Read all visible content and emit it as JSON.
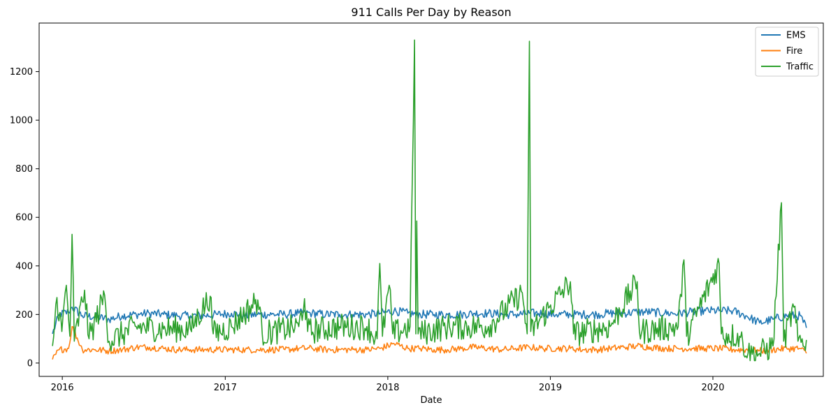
{
  "chart_data": {
    "type": "line",
    "title": "911 Calls Per Day by Reason",
    "xlabel": "Date",
    "ylabel": "",
    "xlim": [
      "2015-11-10",
      "2020-09-05"
    ],
    "ylim": [
      -55,
      1400
    ],
    "x_ticks": [
      "2016",
      "2017",
      "2018",
      "2019",
      "2020"
    ],
    "x_tick_dates": [
      "2016-01-01",
      "2017-01-01",
      "2018-01-01",
      "2019-01-01",
      "2020-01-01"
    ],
    "y_ticks": [
      0,
      200,
      400,
      600,
      800,
      1000,
      1200
    ],
    "grid": false,
    "legend_position": "top-right",
    "series": [
      {
        "name": "EMS",
        "color": "#1f77b4",
        "points": [
          [
            "2015-12-10",
            120
          ],
          [
            "2015-12-25",
            200
          ],
          [
            "2016-01-15",
            210
          ],
          [
            "2016-01-23",
            230
          ],
          [
            "2016-02-15",
            195
          ],
          [
            "2016-03-15",
            190
          ],
          [
            "2016-04-15",
            180
          ],
          [
            "2016-05-15",
            195
          ],
          [
            "2016-06-15",
            200
          ],
          [
            "2016-07-15",
            205
          ],
          [
            "2016-08-15",
            200
          ],
          [
            "2016-09-15",
            195
          ],
          [
            "2016-10-15",
            195
          ],
          [
            "2016-11-15",
            195
          ],
          [
            "2016-12-15",
            200
          ],
          [
            "2017-01-15",
            205
          ],
          [
            "2017-02-15",
            195
          ],
          [
            "2017-03-15",
            200
          ],
          [
            "2017-04-15",
            200
          ],
          [
            "2017-05-15",
            200
          ],
          [
            "2017-06-15",
            205
          ],
          [
            "2017-07-15",
            205
          ],
          [
            "2017-08-15",
            200
          ],
          [
            "2017-09-15",
            200
          ],
          [
            "2017-10-15",
            200
          ],
          [
            "2017-11-15",
            200
          ],
          [
            "2017-12-15",
            205
          ],
          [
            "2018-01-15",
            215
          ],
          [
            "2018-02-15",
            205
          ],
          [
            "2018-03-15",
            200
          ],
          [
            "2018-04-15",
            200
          ],
          [
            "2018-05-15",
            200
          ],
          [
            "2018-06-15",
            200
          ],
          [
            "2018-07-15",
            205
          ],
          [
            "2018-08-15",
            205
          ],
          [
            "2018-09-15",
            200
          ],
          [
            "2018-10-15",
            200
          ],
          [
            "2018-11-15",
            205
          ],
          [
            "2018-12-15",
            205
          ],
          [
            "2019-01-15",
            200
          ],
          [
            "2019-02-15",
            200
          ],
          [
            "2019-03-15",
            200
          ],
          [
            "2019-04-15",
            200
          ],
          [
            "2019-05-15",
            205
          ],
          [
            "2019-06-15",
            205
          ],
          [
            "2019-07-15",
            210
          ],
          [
            "2019-08-15",
            210
          ],
          [
            "2019-09-15",
            205
          ],
          [
            "2019-10-15",
            205
          ],
          [
            "2019-11-15",
            210
          ],
          [
            "2019-12-15",
            215
          ],
          [
            "2020-01-15",
            215
          ],
          [
            "2020-02-15",
            215
          ],
          [
            "2020-03-15",
            195
          ],
          [
            "2020-04-15",
            165
          ],
          [
            "2020-05-15",
            180
          ],
          [
            "2020-06-15",
            195
          ],
          [
            "2020-07-15",
            195
          ],
          [
            "2020-07-29",
            145
          ]
        ]
      },
      {
        "name": "Fire",
        "color": "#ff7f0e",
        "points": [
          [
            "2015-12-10",
            15
          ],
          [
            "2015-12-25",
            55
          ],
          [
            "2016-01-15",
            60
          ],
          [
            "2016-01-23",
            150
          ],
          [
            "2016-02-15",
            55
          ],
          [
            "2016-03-15",
            55
          ],
          [
            "2016-04-15",
            50
          ],
          [
            "2016-05-15",
            55
          ],
          [
            "2016-06-15",
            65
          ],
          [
            "2016-07-15",
            65
          ],
          [
            "2016-08-15",
            60
          ],
          [
            "2016-09-15",
            55
          ],
          [
            "2016-10-15",
            55
          ],
          [
            "2016-11-15",
            55
          ],
          [
            "2016-12-15",
            55
          ],
          [
            "2017-01-15",
            55
          ],
          [
            "2017-02-15",
            55
          ],
          [
            "2017-03-15",
            55
          ],
          [
            "2017-04-15",
            55
          ],
          [
            "2017-05-15",
            55
          ],
          [
            "2017-06-15",
            60
          ],
          [
            "2017-07-15",
            60
          ],
          [
            "2017-08-15",
            55
          ],
          [
            "2017-09-15",
            55
          ],
          [
            "2017-10-15",
            55
          ],
          [
            "2017-11-15",
            55
          ],
          [
            "2017-12-15",
            60
          ],
          [
            "2018-01-15",
            80
          ],
          [
            "2018-02-15",
            60
          ],
          [
            "2018-03-15",
            60
          ],
          [
            "2018-04-15",
            55
          ],
          [
            "2018-05-15",
            55
          ],
          [
            "2018-06-15",
            60
          ],
          [
            "2018-07-15",
            65
          ],
          [
            "2018-08-15",
            60
          ],
          [
            "2018-09-15",
            55
          ],
          [
            "2018-10-15",
            60
          ],
          [
            "2018-11-15",
            65
          ],
          [
            "2018-12-15",
            60
          ],
          [
            "2019-01-15",
            60
          ],
          [
            "2019-02-15",
            60
          ],
          [
            "2019-03-15",
            55
          ],
          [
            "2019-04-15",
            55
          ],
          [
            "2019-05-15",
            60
          ],
          [
            "2019-06-15",
            65
          ],
          [
            "2019-07-15",
            70
          ],
          [
            "2019-08-15",
            65
          ],
          [
            "2019-09-15",
            60
          ],
          [
            "2019-10-15",
            60
          ],
          [
            "2019-11-15",
            60
          ],
          [
            "2019-12-15",
            60
          ],
          [
            "2020-01-15",
            60
          ],
          [
            "2020-02-15",
            55
          ],
          [
            "2020-03-15",
            55
          ],
          [
            "2020-04-15",
            50
          ],
          [
            "2020-05-15",
            55
          ],
          [
            "2020-06-15",
            60
          ],
          [
            "2020-07-15",
            60
          ],
          [
            "2020-07-29",
            40
          ]
        ]
      },
      {
        "name": "Traffic",
        "color": "#2ca02c",
        "points": [
          [
            "2015-12-10",
            70
          ],
          [
            "2015-12-20",
            270
          ],
          [
            "2015-12-31",
            130
          ],
          [
            "2016-01-10",
            320
          ],
          [
            "2016-01-18",
            110
          ],
          [
            "2016-01-23",
            530
          ],
          [
            "2016-01-28",
            90
          ],
          [
            "2016-02-20",
            300
          ],
          [
            "2016-03-01",
            100
          ],
          [
            "2016-04-05",
            280
          ],
          [
            "2016-04-15",
            90
          ],
          [
            "2016-06-15",
            150
          ],
          [
            "2016-08-15",
            140
          ],
          [
            "2016-10-15",
            140
          ],
          [
            "2016-11-28",
            275
          ],
          [
            "2016-12-05",
            120
          ],
          [
            "2017-01-15",
            150
          ],
          [
            "2017-03-15",
            260
          ],
          [
            "2017-03-25",
            120
          ],
          [
            "2017-06-15",
            150
          ],
          [
            "2017-06-28",
            265
          ],
          [
            "2017-07-05",
            130
          ],
          [
            "2017-09-15",
            150
          ],
          [
            "2017-11-15",
            150
          ],
          [
            "2017-12-08",
            100
          ],
          [
            "2017-12-14",
            410
          ],
          [
            "2017-12-20",
            110
          ],
          [
            "2018-01-04",
            320
          ],
          [
            "2018-01-12",
            120
          ],
          [
            "2018-02-20",
            150
          ],
          [
            "2018-03-02",
            1330
          ],
          [
            "2018-03-05",
            120
          ],
          [
            "2018-03-07",
            585
          ],
          [
            "2018-03-10",
            120
          ],
          [
            "2018-05-15",
            150
          ],
          [
            "2018-08-15",
            150
          ],
          [
            "2018-10-30",
            290
          ],
          [
            "2018-11-10",
            120
          ],
          [
            "2018-11-15",
            1325
          ],
          [
            "2018-11-18",
            130
          ],
          [
            "2019-02-15",
            335
          ],
          [
            "2019-02-22",
            120
          ],
          [
            "2019-05-15",
            150
          ],
          [
            "2019-07-15",
            335
          ],
          [
            "2019-07-20",
            130
          ],
          [
            "2019-10-15",
            150
          ],
          [
            "2019-10-28",
            425
          ],
          [
            "2019-11-03",
            110
          ],
          [
            "2020-01-15",
            410
          ],
          [
            "2020-01-20",
            120
          ],
          [
            "2020-03-01",
            110
          ],
          [
            "2020-03-20",
            40
          ],
          [
            "2020-04-15",
            40
          ],
          [
            "2020-05-15",
            70
          ],
          [
            "2020-06-03",
            660
          ],
          [
            "2020-06-08",
            90
          ],
          [
            "2020-07-01",
            230
          ],
          [
            "2020-07-10",
            90
          ],
          [
            "2020-07-29",
            95
          ]
        ]
      }
    ]
  }
}
